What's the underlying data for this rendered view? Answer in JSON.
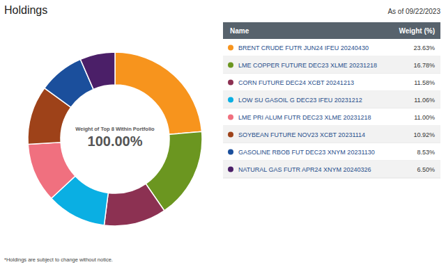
{
  "chart_data": {
    "type": "pie",
    "title": "Holdings",
    "subtitle": "As of 09/22/2023",
    "annotations": [
      "Weight of Top 8 Within Portfolio",
      "100.00%"
    ],
    "legend_header": [
      "Name",
      "Weight (%)"
    ],
    "categories": [
      "BRENT CRUDE FUTR JUN24 IFEU 20240430",
      "LME COPPER FUTURE DEC23 XLME 20231218",
      "CORN FUTURE DEC24 XCBT 20241213",
      "LOW SU GASOIL G DEC23 IFEU 20231212",
      "LME PRI ALUM FUTR DEC23 XLME 20231218",
      "SOYBEAN FUTURE NOV23 XCBT 20231114",
      "GASOLINE RBOB FUT DEC23 XNYM 20231130",
      "NATURAL GAS FUTR APR24 XNYM 20240326"
    ],
    "values": [
      23.63,
      16.78,
      11.58,
      11.06,
      11.0,
      10.92,
      8.53,
      6.5
    ],
    "value_labels": [
      "23.63%",
      "16.78%",
      "11.58%",
      "11.06%",
      "11.00%",
      "10.92%",
      "8.53%",
      "6.50%"
    ],
    "colors": [
      "#f7941d",
      "#6b9620",
      "#8c3152",
      "#0aafe3",
      "#f0707f",
      "#9e4219",
      "#1b4f9c",
      "#4b1f68"
    ],
    "footnote": "*Holdings are subject to change without notice."
  }
}
